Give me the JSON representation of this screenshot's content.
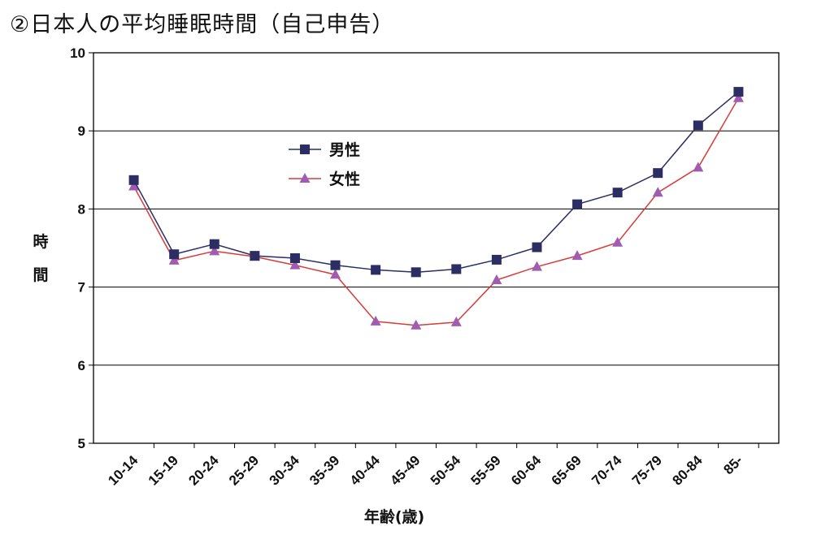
{
  "title": "②日本人の平均睡眠時間（自己申告）",
  "chart_data": {
    "type": "line",
    "title": "②日本人の平均睡眠時間（自己申告）",
    "xlabel": "年齢(歳)",
    "ylabel": "時間",
    "ylabel_chars": [
      "時",
      "間"
    ],
    "ylim": [
      5,
      10
    ],
    "yticks": [
      "5",
      "6",
      "7",
      "8",
      "9",
      "10"
    ],
    "grid": true,
    "legend_position": "upper-left-inside",
    "categories": [
      "10-14",
      "15-19",
      "20-24",
      "25-29",
      "30-34",
      "35-39",
      "40-44",
      "45-49",
      "50-54",
      "55-59",
      "60-64",
      "65-69",
      "70-74",
      "75-79",
      "80-84",
      "85-"
    ],
    "series": [
      {
        "name": "男性",
        "color": "#2B2D63",
        "marker": "square",
        "values": [
          8.37,
          7.42,
          7.55,
          7.4,
          7.37,
          7.28,
          7.22,
          7.19,
          7.23,
          7.35,
          7.51,
          8.06,
          8.21,
          8.46,
          9.07,
          9.5
        ]
      },
      {
        "name": "女性",
        "color": "#D93A3A",
        "marker_color": "#A05CB0",
        "marker": "triangle",
        "values": [
          8.29,
          7.34,
          7.46,
          7.39,
          7.28,
          7.16,
          6.56,
          6.51,
          6.55,
          7.09,
          7.26,
          7.4,
          7.57,
          8.21,
          8.53,
          9.42
        ]
      }
    ]
  }
}
